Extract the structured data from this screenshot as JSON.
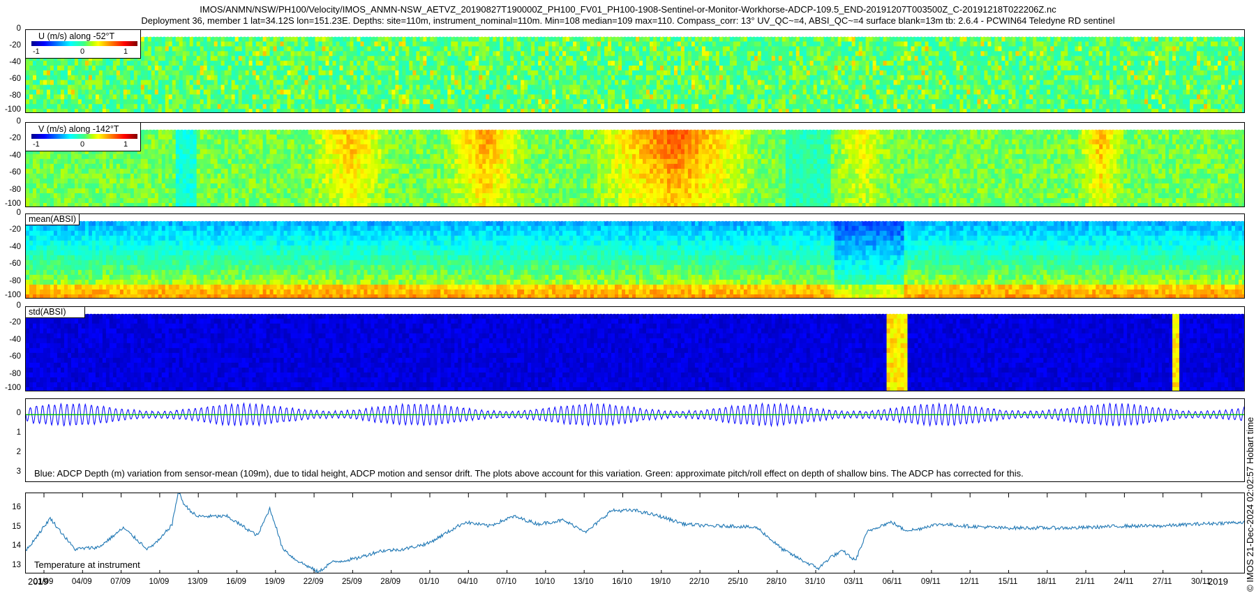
{
  "title_line1": "IMOS/ANMN/NSW/PH100/Velocity/IMOS_ANMN-NSW_AETVZ_20190827T190000Z_PH100_FV01_PH100-1908-Sentinel-or-Monitor-Workhorse-ADCP-109.5_END-20191207T003500Z_C-20191218T022206Z.nc",
  "title_line2": "Deployment 36, member 1 lat=34.12S lon=151.23E. Depths: site=110m, instrument_nominal=110m. Min=108 median=109 max=110. Compass_corr: 13° UV_QC~=4, ABSI_QC~=4 surface blank=13m tb: 2.6.4 - PCWIN64 Teledyne RD sentinel",
  "right_label": "© IMOS 21-Dec-2024 02:02:57 Hobart time",
  "colors": {
    "u_base": "#4fe02a",
    "v_base": "#7ee838",
    "absi_base": "#3ad0a0",
    "std_base": "#001a9a",
    "depth_line": "#0000ff",
    "pitch_line": "#00c000",
    "temp_line": "#1f77b4"
  },
  "chart_data": [
    {
      "type": "heatmap",
      "id": "u-velocity",
      "legend_title": "U (m/s) along -52°T",
      "colorbar_ticks": [
        "-1",
        "0",
        "1"
      ],
      "yticks": [
        "0",
        "-20",
        "-40",
        "-60",
        "-80",
        "-100"
      ],
      "ylim": [
        -100,
        0
      ],
      "note": "mostly near 0 m/s with fine tidal streaks",
      "surface_blank_m": 13
    },
    {
      "type": "heatmap",
      "id": "v-velocity",
      "legend_title": "V (m/s) along -142°T",
      "colorbar_ticks": [
        "-1",
        "0",
        "1"
      ],
      "yticks": [
        "0",
        "-20",
        "-40",
        "-60",
        "-80",
        "-100"
      ],
      "ylim": [
        -100,
        0
      ],
      "events": [
        {
          "start": 0.23,
          "end": 0.3,
          "value": 0.5
        },
        {
          "start": 0.34,
          "end": 0.41,
          "value": 0.6
        },
        {
          "start": 0.46,
          "end": 0.6,
          "value": 0.8
        },
        {
          "start": 0.66,
          "end": 0.71,
          "value": 0.3
        },
        {
          "start": 0.86,
          "end": 0.9,
          "value": 0.5
        }
      ]
    },
    {
      "type": "heatmap",
      "id": "mean-absi",
      "label": "mean(ABSI)",
      "yticks": [
        "0",
        "-20",
        "-40",
        "-60",
        "-80",
        "-100"
      ],
      "ylim": [
        -100,
        0
      ]
    },
    {
      "type": "heatmap",
      "id": "std-absi",
      "label": "std(ABSI)",
      "yticks": [
        "0",
        "-20",
        "-40",
        "-60",
        "-80",
        "-100"
      ],
      "ylim": [
        -100,
        0
      ],
      "spikes": [
        {
          "start": 0.705,
          "end": 0.72
        },
        {
          "start": 0.939,
          "end": 0.945
        }
      ]
    },
    {
      "type": "line",
      "id": "adcp-depth",
      "caption": "Blue: ADCP Depth (m) variation from sensor-mean (109m), due to tidal height, ADCP motion and sensor drift. The plots above account for this variation. Green: approximate pitch/roll effect on depth of shallow bins. The ADCP has corrected for this.",
      "yticks": [
        "0",
        "1",
        "2",
        "3"
      ],
      "ylim": [
        -0.8,
        3.5
      ],
      "tidal_cycles": 200,
      "amplitude_m": 0.55
    },
    {
      "type": "line",
      "id": "temperature",
      "caption": "Temperature at instrument",
      "yticks": [
        "13",
        "14",
        "15",
        "16"
      ],
      "ylim": [
        12.6,
        16.8
      ],
      "x_fraction": [
        0.0,
        0.02,
        0.04,
        0.06,
        0.08,
        0.1,
        0.11,
        0.12,
        0.125,
        0.13,
        0.14,
        0.165,
        0.19,
        0.2,
        0.205,
        0.21,
        0.22,
        0.24,
        0.25,
        0.27,
        0.29,
        0.31,
        0.33,
        0.36,
        0.38,
        0.4,
        0.42,
        0.44,
        0.46,
        0.48,
        0.5,
        0.52,
        0.54,
        0.56,
        0.58,
        0.6,
        0.62,
        0.64,
        0.65,
        0.66,
        0.67,
        0.68,
        0.69,
        0.7,
        0.71,
        0.72,
        0.73,
        0.74,
        0.75,
        0.77,
        0.8,
        0.83,
        0.86,
        0.9,
        0.93,
        0.96,
        1.0
      ],
      "values": [
        13.8,
        15.5,
        13.9,
        14.0,
        15.0,
        13.9,
        14.4,
        15.2,
        16.9,
        16.2,
        15.6,
        15.6,
        14.6,
        16.0,
        15.1,
        14.0,
        13.4,
        12.7,
        13.2,
        13.4,
        13.8,
        13.9,
        14.2,
        15.3,
        15.1,
        15.6,
        15.2,
        15.4,
        14.8,
        15.9,
        15.9,
        15.6,
        15.2,
        15.1,
        15.1,
        15.0,
        13.9,
        13.2,
        12.9,
        13.5,
        13.8,
        13.3,
        14.8,
        15.1,
        15.3,
        14.9,
        14.9,
        15.1,
        15.2,
        15.1,
        15.0,
        15.0,
        15.0,
        15.1,
        15.1,
        15.2,
        15.3
      ]
    }
  ],
  "x_axis": {
    "year_start": "2019",
    "year_end": "2019",
    "ticks": [
      "01/09",
      "04/09",
      "07/09",
      "10/09",
      "13/09",
      "16/09",
      "19/09",
      "22/09",
      "25/09",
      "28/09",
      "01/10",
      "04/10",
      "07/10",
      "10/10",
      "13/10",
      "16/10",
      "19/10",
      "22/10",
      "25/10",
      "28/10",
      "31/10",
      "03/11",
      "06/11",
      "09/11",
      "12/11",
      "15/11",
      "18/11",
      "21/11",
      "24/11",
      "27/11",
      "30/11"
    ]
  }
}
